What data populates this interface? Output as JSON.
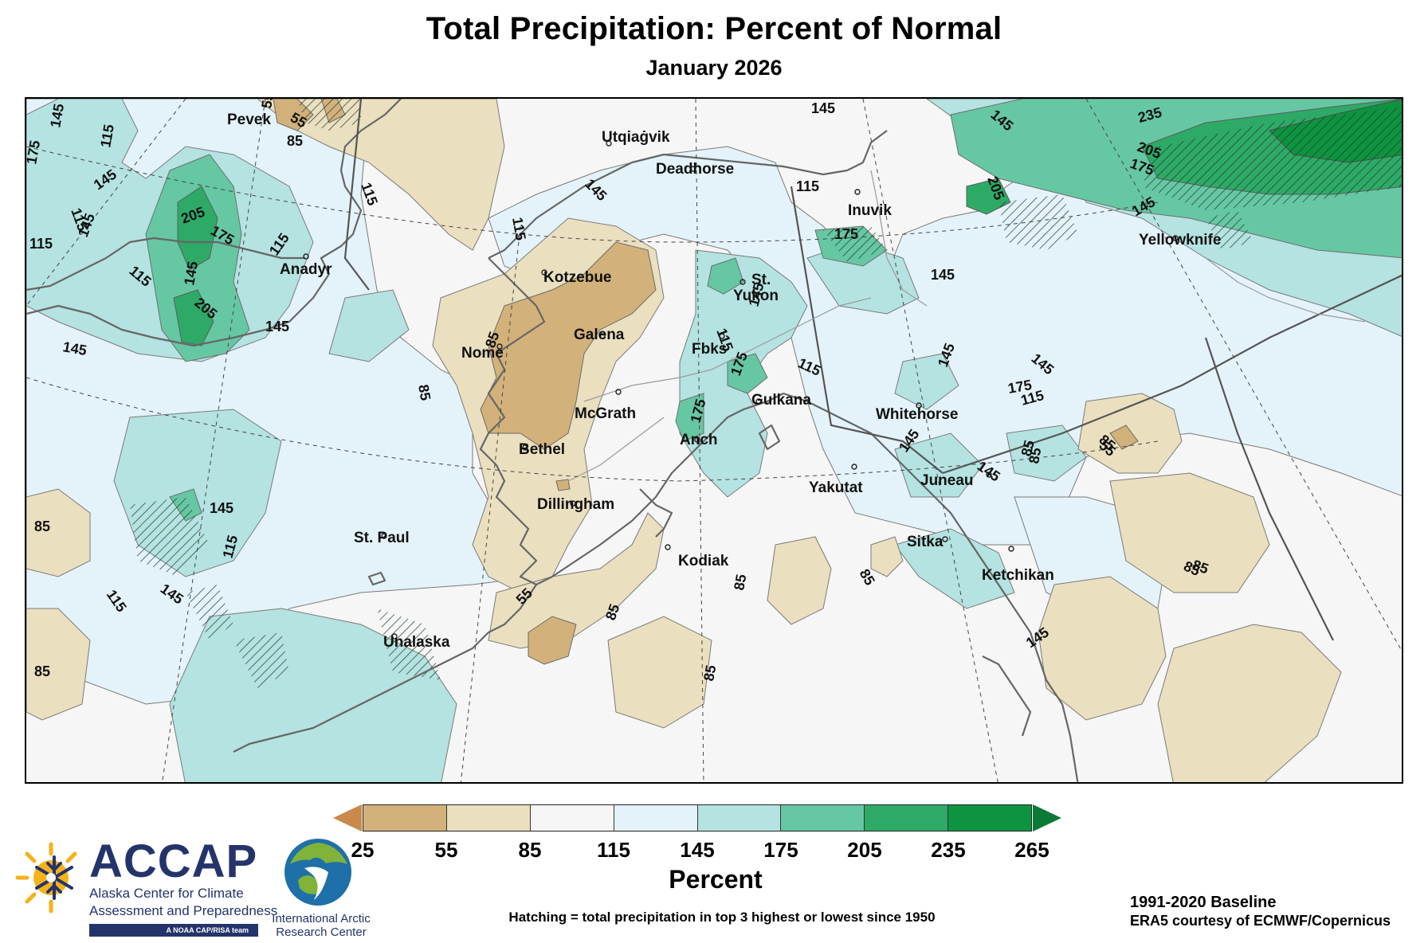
{
  "header": {
    "title": "Total Precipitation: Percent of Normal",
    "subtitle": "January 2026"
  },
  "map": {
    "cities": [
      {
        "name": "Pevek"
      },
      {
        "name": "Utqiaġvik"
      },
      {
        "name": "Deadhorse"
      },
      {
        "name": "Inuvik"
      },
      {
        "name": "Yellowknife"
      },
      {
        "name": "Anadyr"
      },
      {
        "name": "Kotzebue"
      },
      {
        "name": "Galena"
      },
      {
        "name": "Nome"
      },
      {
        "name": "Fbks"
      },
      {
        "name": "St."
      },
      {
        "name": "Yukon"
      },
      {
        "name": "Gulkana"
      },
      {
        "name": "McGrath"
      },
      {
        "name": "Bethel"
      },
      {
        "name": "Anch"
      },
      {
        "name": "Whitehorse"
      },
      {
        "name": "Juneau"
      },
      {
        "name": "Yakutat"
      },
      {
        "name": "Dillingham"
      },
      {
        "name": "St. Paul"
      },
      {
        "name": "Kodiak"
      },
      {
        "name": "Sitka"
      },
      {
        "name": "Ketchikan"
      },
      {
        "name": "Unalaska"
      }
    ],
    "contour_labels": [
      "145",
      "175",
      "115",
      "145",
      "115",
      "145",
      "115",
      "205",
      "175",
      "145",
      "205",
      "115",
      "145",
      "145",
      "115",
      "55",
      "55",
      "85",
      "115",
      "115",
      "145",
      "145",
      "85",
      "85",
      "115",
      "175",
      "115",
      "145",
      "145",
      "205",
      "175",
      "235",
      "205",
      "175",
      "145",
      "175",
      "145",
      "145",
      "145",
      "175",
      "115",
      "145",
      "85",
      "85",
      "55",
      "85",
      "85",
      "85",
      "145",
      "115",
      "145",
      "115",
      "85",
      "85",
      "85",
      "85",
      "145",
      "55",
      "85",
      "85",
      "145",
      "115"
    ]
  },
  "legend": {
    "ticks": [
      "25",
      "55",
      "85",
      "115",
      "145",
      "175",
      "205",
      "235",
      "265"
    ],
    "colors": [
      "#d2b27a",
      "#eadfbf",
      "#f6f6f6",
      "#e4f3f9",
      "#b4e3e1",
      "#66c7a3",
      "#2eaa67",
      "#0e9440"
    ],
    "under_color": "#c8894b",
    "over_color": "#0a7a34",
    "title": "Percent",
    "hatching_note": "Hatching = total precipitation in top 3 highest or lowest since 1950"
  },
  "footer": {
    "baseline": "1991-2020 Baseline",
    "courtesy": "ERA5 courtesy of ECMWF/Copernicus"
  },
  "logos": {
    "accap": {
      "name": "ACCAP",
      "line1": "Alaska Center for Climate",
      "line2": "Assessment and Preparedness",
      "badge": "A NOAA CAP/RISA team"
    },
    "iarc": {
      "line1": "International Arctic",
      "line2": "Research Center"
    }
  }
}
